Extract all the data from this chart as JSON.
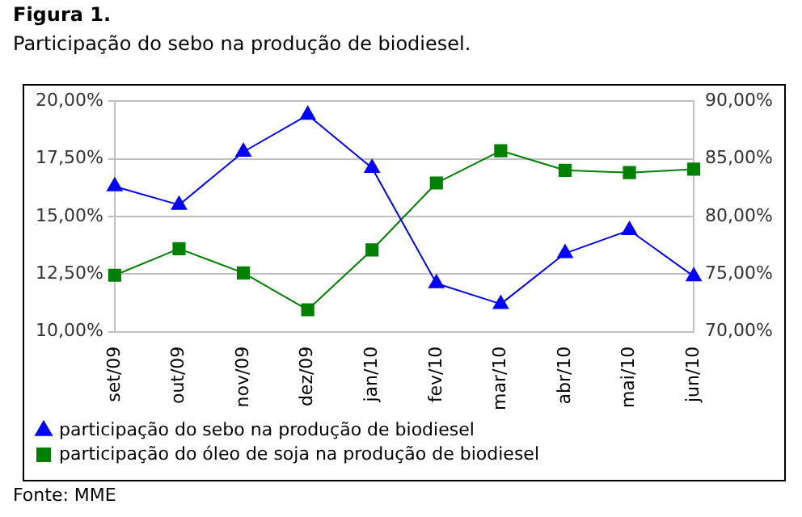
{
  "chart_data": {
    "type": "line",
    "title": "Figura 1.",
    "subtitle": "Participação do sebo na produção de biodiesel.",
    "categories": [
      "set/09",
      "out/09",
      "nov/09",
      "dez/09",
      "jan/10",
      "fev/10",
      "mar/10",
      "abr/10",
      "mai/10",
      "jun/10"
    ],
    "series": [
      {
        "name": "participação do sebo na produção de biodiesel",
        "color": "#0000ff",
        "marker": "triangle",
        "values": [
          16.3,
          15.5,
          17.8,
          19.4,
          17.1,
          12.1,
          11.2,
          13.4,
          14.4,
          12.4
        ]
      },
      {
        "name": "participação do óleo de soja na produção de biodiesel",
        "color": "#008000",
        "marker": "square",
        "axis": "y2",
        "values": [
          74.9,
          77.2,
          75.1,
          71.9,
          77.1,
          82.9,
          85.7,
          84.0,
          83.8,
          84.1
        ]
      }
    ],
    "ylim": [
      10,
      20
    ],
    "yticks": [
      {
        "value": 10,
        "label": "10,00%"
      },
      {
        "value": 12.5,
        "label": "12,50%"
      },
      {
        "value": 15,
        "label": "15,00%"
      },
      {
        "value": 17.5,
        "label": "17,50%"
      },
      {
        "value": 20,
        "label": "20,00%"
      }
    ],
    "y2lim": [
      70,
      90
    ],
    "y2ticks": [
      {
        "value": 70,
        "label": "70,00%"
      },
      {
        "value": 75,
        "label": "75,00%"
      },
      {
        "value": 80,
        "label": "80,00%"
      },
      {
        "value": 85,
        "label": "85,00%"
      },
      {
        "value": 90,
        "label": "90,00%"
      }
    ],
    "grid": "y",
    "legend": "bottom",
    "line_style": "solid",
    "annotations": [
      "Fonte: MME"
    ]
  }
}
